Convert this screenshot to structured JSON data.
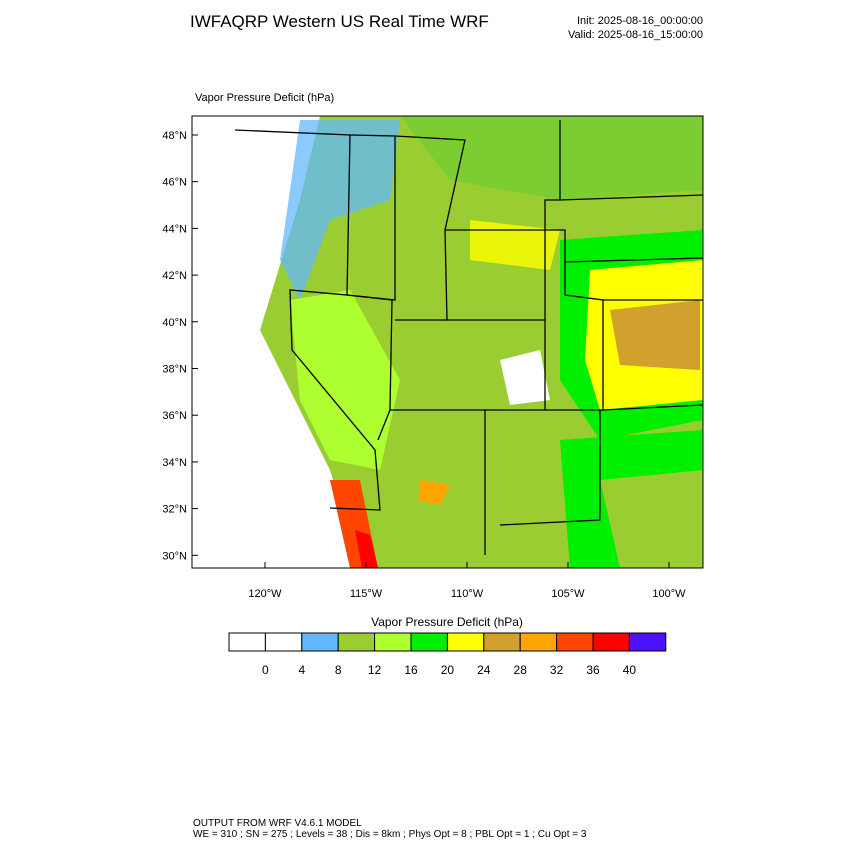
{
  "title": "IWFAQRP Western US Real Time WRF",
  "init": "Init: 2025-08-16_00:00:00",
  "valid": "Valid: 2025-08-16_15:00:00",
  "map": {
    "label": "Vapor Pressure Deficit   (hPa)",
    "lat_ticks": [
      "48°N",
      "46°N",
      "44°N",
      "42°N",
      "40°N",
      "38°N",
      "36°N",
      "34°N",
      "32°N",
      "30°N"
    ],
    "lon_ticks": [
      "120°W",
      "115°W",
      "110°W",
      "105°W",
      "100°W"
    ]
  },
  "colorbar": {
    "title": "Vapor Pressure Deficit  (hPa)",
    "ticks": [
      0,
      4,
      8,
      12,
      16,
      20,
      24,
      28,
      32,
      36,
      40
    ],
    "colors": [
      "#ffffff",
      "#ffffff",
      "#63b8ff",
      "#9acd32",
      "#adff2f",
      "#00ee00",
      "#ffff00",
      "#d2a02d",
      "#ffa500",
      "#ff4500",
      "#ff0000",
      "#4b12ff"
    ]
  },
  "footer": [
    "OUTPUT FROM WRF V4.6.1 MODEL",
    "WE = 310 ; SN = 275 ; Levels = 38 ; Dis = 8km ; Phys Opt = 8 ; PBL Opt = 1 ; Cu Opt = 3"
  ]
}
